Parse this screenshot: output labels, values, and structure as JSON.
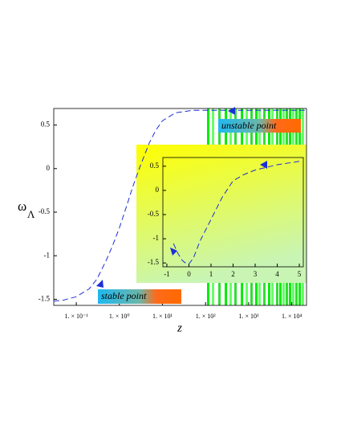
{
  "chart_data": [
    {
      "type": "line",
      "x_label": "z",
      "y_label": {
        "symbol": "ω",
        "subscript": "Λ"
      },
      "xlim": [
        0.03,
        22000
      ],
      "ylim": [
        -1.57,
        0.69
      ],
      "log_x": true,
      "xticks": [
        {
          "value": 0.1,
          "label": "1. × 10⁻¹"
        },
        {
          "value": 1,
          "label": "1. × 10⁰"
        },
        {
          "value": 10,
          "label": "1. × 10¹"
        },
        {
          "value": 100,
          "label": "1. × 10²"
        },
        {
          "value": 1000,
          "label": "1. × 10³"
        },
        {
          "value": 10000,
          "label": "1. × 10⁴"
        }
      ],
      "yticks": [
        -1.5,
        -1,
        -0.5,
        0,
        0.5
      ],
      "annotations": [
        "stable point",
        "unstable point"
      ],
      "series": [
        {
          "color": "#1c2fd8",
          "x": [
            0.03,
            0.05,
            0.1,
            0.2,
            0.3,
            0.5,
            0.7,
            1,
            1.5,
            2,
            3,
            5,
            7,
            10,
            20,
            50,
            100,
            20000
          ],
          "values": [
            -1.52,
            -1.51,
            -1.47,
            -1.38,
            -1.27,
            -1.05,
            -0.88,
            -0.68,
            -0.42,
            -0.22,
            0.02,
            0.3,
            0.44,
            0.55,
            0.64,
            0.67,
            0.67,
            0.67
          ]
        }
      ]
    },
    {
      "type": "line",
      "xlim": [
        -1.18,
        5.18
      ],
      "ylim": [
        -1.58,
        0.68
      ],
      "xticks": [
        -1,
        0,
        1,
        2,
        3,
        4,
        5
      ],
      "yticks": [
        -1.5,
        -1,
        -0.5,
        0,
        0.5
      ],
      "series": [
        {
          "color": "#1c2fd8",
          "x": [
            -0.7,
            -0.5,
            -0.3,
            -0.1,
            0,
            0.2,
            0.5,
            1,
            1.5,
            2,
            2.5,
            3,
            4,
            5
          ],
          "values": [
            -1.1,
            -1.3,
            -1.45,
            -1.52,
            -1.52,
            -1.4,
            -1.05,
            -0.6,
            -0.15,
            0.2,
            0.33,
            0.42,
            0.53,
            0.6
          ]
        }
      ]
    }
  ]
}
